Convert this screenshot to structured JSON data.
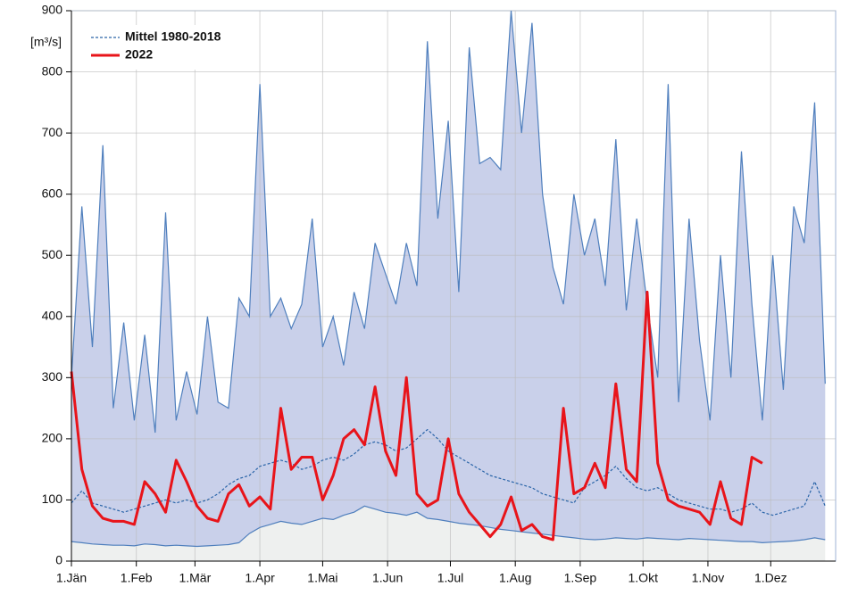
{
  "chart_data": {
    "type": "line",
    "y_label": "[m³/s]",
    "xlim": [
      0,
      365
    ],
    "xticks": [
      {
        "value": 0,
        "label": "1.Jän"
      },
      {
        "value": 31,
        "label": "1.Feb"
      },
      {
        "value": 59,
        "label": "1.Mär"
      },
      {
        "value": 90,
        "label": "1.Apr"
      },
      {
        "value": 120,
        "label": "1.Mai"
      },
      {
        "value": 151,
        "label": "1.Jun"
      },
      {
        "value": 181,
        "label": "1.Jul"
      },
      {
        "value": 212,
        "label": "1.Aug"
      },
      {
        "value": 243,
        "label": "1.Sep"
      },
      {
        "value": 273,
        "label": "1.Okt"
      },
      {
        "value": 304,
        "label": "1.Nov"
      },
      {
        "value": 334,
        "label": "1.Dez"
      }
    ],
    "ylim": [
      0,
      900
    ],
    "yticks": [
      0,
      100,
      200,
      300,
      400,
      500,
      600,
      700,
      800,
      900
    ],
    "grid": true,
    "legend": "upper left",
    "x": [
      0,
      5,
      10,
      15,
      20,
      25,
      30,
      35,
      40,
      45,
      50,
      55,
      60,
      65,
      70,
      75,
      80,
      85,
      90,
      95,
      100,
      105,
      110,
      115,
      120,
      125,
      130,
      135,
      140,
      145,
      150,
      155,
      160,
      165,
      170,
      175,
      180,
      185,
      190,
      195,
      200,
      205,
      210,
      215,
      220,
      225,
      230,
      235,
      240,
      245,
      250,
      255,
      260,
      265,
      270,
      275,
      280,
      285,
      290,
      295,
      300,
      305,
      310,
      315,
      320,
      325,
      330,
      335,
      340,
      345,
      350,
      355,
      360
    ],
    "band": {
      "color": "#c9d0ea",
      "line_color": "#4f7fbd",
      "below_color": "#eef0ef",
      "upper": [
        300,
        580,
        350,
        680,
        250,
        390,
        230,
        370,
        210,
        570,
        230,
        310,
        240,
        400,
        260,
        250,
        430,
        400,
        780,
        400,
        430,
        380,
        420,
        560,
        350,
        400,
        320,
        440,
        380,
        520,
        470,
        420,
        520,
        450,
        850,
        560,
        720,
        440,
        840,
        650,
        660,
        640,
        900,
        700,
        880,
        600,
        480,
        420,
        600,
        500,
        560,
        450,
        690,
        410,
        560,
        420,
        300,
        780,
        260,
        560,
        360,
        230,
        500,
        300,
        670,
        420,
        230,
        500,
        280,
        580,
        520,
        750,
        290
      ],
      "lower": [
        32,
        30,
        28,
        27,
        26,
        26,
        25,
        28,
        27,
        25,
        26,
        25,
        24,
        25,
        26,
        27,
        30,
        45,
        55,
        60,
        65,
        62,
        60,
        65,
        70,
        68,
        75,
        80,
        90,
        85,
        80,
        78,
        75,
        80,
        70,
        68,
        65,
        62,
        60,
        58,
        55,
        52,
        50,
        48,
        46,
        44,
        42,
        40,
        38,
        36,
        35,
        36,
        38,
        37,
        36,
        38,
        37,
        36,
        35,
        37,
        36,
        35,
        34,
        33,
        32,
        32,
        30,
        31,
        32,
        33,
        35,
        38,
        35
      ]
    },
    "series": [
      {
        "name": "Mittel 1980-2018",
        "color": "#2a64a8",
        "dash": true,
        "values": [
          95,
          115,
          95,
          90,
          85,
          80,
          85,
          90,
          95,
          100,
          95,
          100,
          95,
          100,
          110,
          125,
          135,
          140,
          155,
          160,
          165,
          160,
          150,
          155,
          165,
          170,
          165,
          175,
          190,
          195,
          190,
          180,
          185,
          200,
          215,
          200,
          180,
          170,
          160,
          150,
          140,
          135,
          130,
          125,
          120,
          110,
          105,
          100,
          95,
          120,
          130,
          140,
          155,
          135,
          120,
          115,
          120,
          110,
          100,
          95,
          90,
          85,
          85,
          80,
          85,
          95,
          80,
          75,
          80,
          85,
          90,
          130,
          90
        ]
      },
      {
        "name": "2022",
        "color": "#e8141a",
        "dash": false,
        "values": [
          310,
          150,
          90,
          70,
          65,
          65,
          60,
          130,
          110,
          80,
          165,
          130,
          90,
          70,
          65,
          110,
          125,
          90,
          105,
          85,
          250,
          150,
          170,
          170,
          100,
          140,
          200,
          215,
          190,
          285,
          180,
          140,
          300,
          110,
          90,
          100,
          200,
          110,
          80,
          60,
          40,
          60,
          105,
          50,
          60,
          40,
          35,
          250,
          110,
          120,
          160,
          120,
          290,
          150,
          130,
          440,
          160,
          100,
          90,
          85,
          80,
          60,
          130,
          70,
          60,
          170,
          160,
          null,
          null,
          null,
          null,
          null,
          null
        ]
      }
    ]
  }
}
